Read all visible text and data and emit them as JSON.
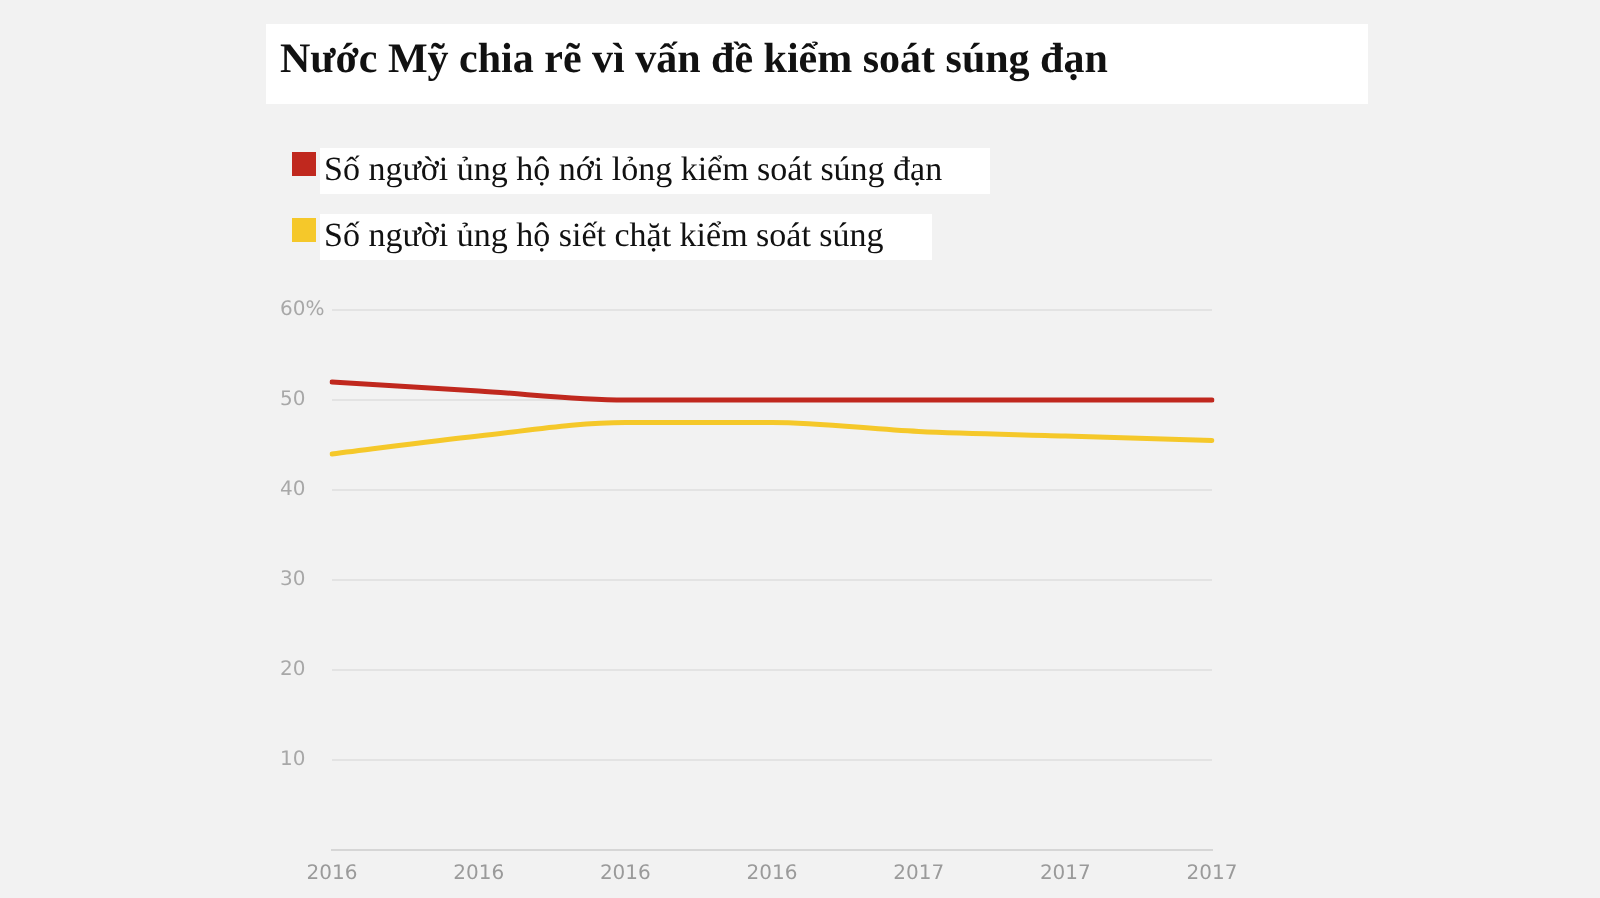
{
  "chart_data": {
    "type": "line",
    "title": "Nước Mỹ chia rẽ vì vấn đề kiểm soát súng đạn",
    "categories": [
      "2016",
      "2016",
      "2016",
      "2016",
      "2017",
      "2017",
      "2017"
    ],
    "series": [
      {
        "name": "Số người ủng hộ nới lỏng kiểm soát súng đạn",
        "color": "#c0281e",
        "values": [
          52,
          51,
          50,
          50,
          50,
          50,
          50
        ]
      },
      {
        "name": "Số người ủng hộ siết chặt kiểm soát súng",
        "color": "#f5c82a",
        "values": [
          44,
          46,
          47.5,
          47.5,
          46.5,
          46,
          45.5
        ]
      }
    ],
    "ylim": [
      0,
      60
    ],
    "yticks": [
      10,
      20,
      30,
      40,
      50,
      {
        "value": 60,
        "label": "60%"
      }
    ],
    "grid": "y",
    "legend": "top left",
    "marker": "none",
    "line_style": "solid"
  }
}
